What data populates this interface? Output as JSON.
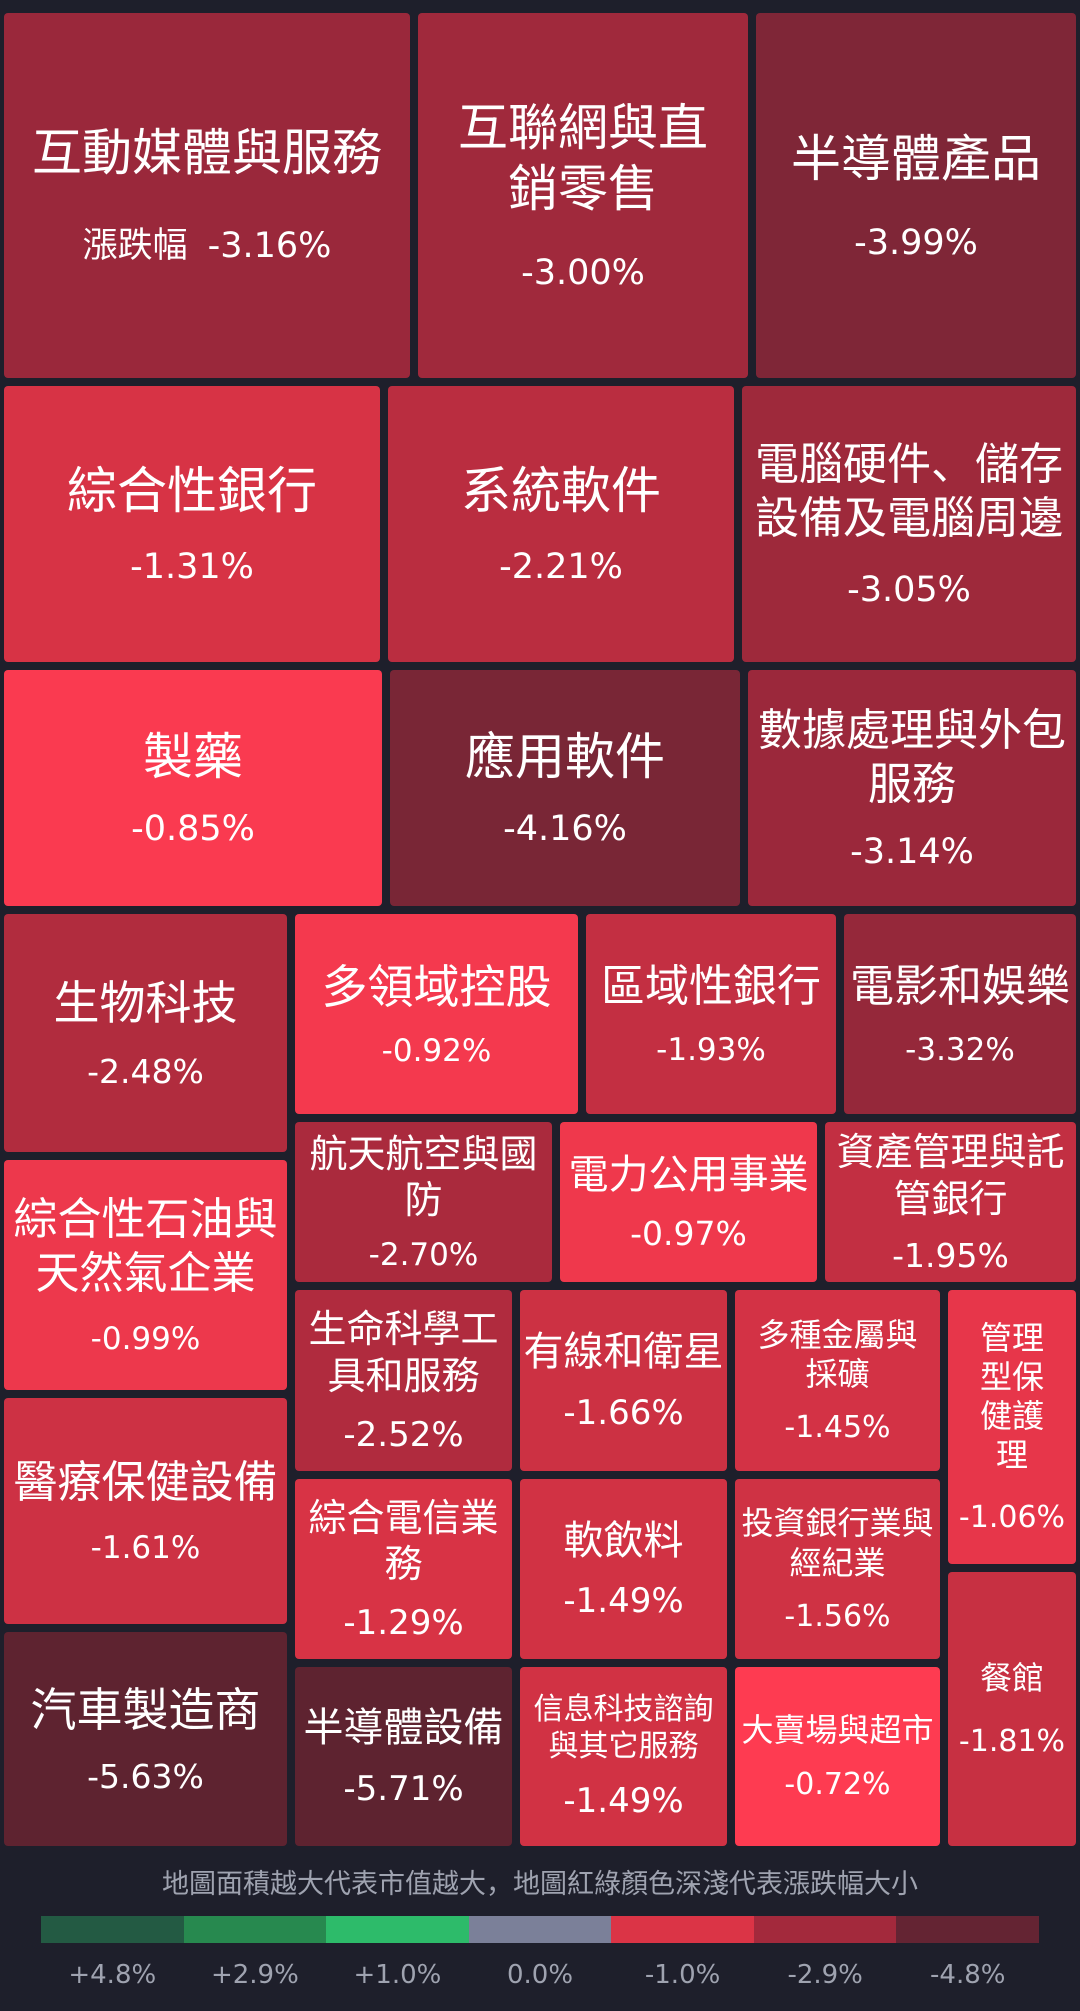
{
  "chart_data": {
    "type": "treemap",
    "tiles": [
      {
        "name": "互動媒體與服務",
        "prefix": "漲跌幅",
        "value": "-3.16%"
      },
      {
        "name": "互聯網與直銷零售",
        "value": "-3.00%"
      },
      {
        "name": "半導體產品",
        "value": "-3.99%"
      },
      {
        "name": "綜合性銀行",
        "value": "-1.31%"
      },
      {
        "name": "系統軟件",
        "value": "-2.21%"
      },
      {
        "name": "電腦硬件、儲存設備及電腦周邊",
        "value": "-3.05%"
      },
      {
        "name": "製藥",
        "value": "-0.85%"
      },
      {
        "name": "應用軟件",
        "value": "-4.16%"
      },
      {
        "name": "數據處理與外包服務",
        "value": "-3.14%"
      },
      {
        "name": "生物科技",
        "value": "-2.48%"
      },
      {
        "name": "多領域控股",
        "value": "-0.92%"
      },
      {
        "name": "區域性銀行",
        "value": "-1.93%"
      },
      {
        "name": "電影和娛樂",
        "value": "-3.32%"
      },
      {
        "name": "綜合性石油與天然氣企業",
        "value": "-0.99%"
      },
      {
        "name": "航天航空與國防",
        "value": "-2.70%"
      },
      {
        "name": "電力公用事業",
        "value": "-0.97%"
      },
      {
        "name": "資產管理與託管銀行",
        "value": "-1.95%"
      },
      {
        "name": "生命科學工具和服務",
        "value": "-2.52%"
      },
      {
        "name": "有線和衛星",
        "value": "-1.66%"
      },
      {
        "name": "多種金屬與採礦",
        "value": "-1.45%"
      },
      {
        "name": "管理型保健護理",
        "value": "-1.06%"
      },
      {
        "name": "醫療保健設備",
        "value": "-1.61%"
      },
      {
        "name": "綜合電信業務",
        "value": "-1.29%"
      },
      {
        "name": "軟飲料",
        "value": "-1.49%"
      },
      {
        "name": "投資銀行業與經紀業",
        "value": "-1.56%"
      },
      {
        "name": "汽車製造商",
        "value": "-5.63%"
      },
      {
        "name": "半導體設備",
        "value": "-5.71%"
      },
      {
        "name": "信息科技諮詢與其它服務",
        "value": "-1.49%"
      },
      {
        "name": "大賣場與超市",
        "value": "-0.72%"
      },
      {
        "name": "餐館",
        "value": "-1.81%"
      }
    ],
    "legend": {
      "note": "地圖面積越大代表市值越大，地圖紅綠顏色深淺代表漲跌幅大小",
      "labels": [
        "+4.8%",
        "+2.9%",
        "+1.0%",
        "0.0%",
        "-1.0%",
        "-2.9%",
        "-4.8%"
      ],
      "colors": [
        "#235a43",
        "#27894f",
        "#2dbb6a",
        "#7b8099",
        "#db3446",
        "#a3293c",
        "#642433"
      ]
    }
  }
}
